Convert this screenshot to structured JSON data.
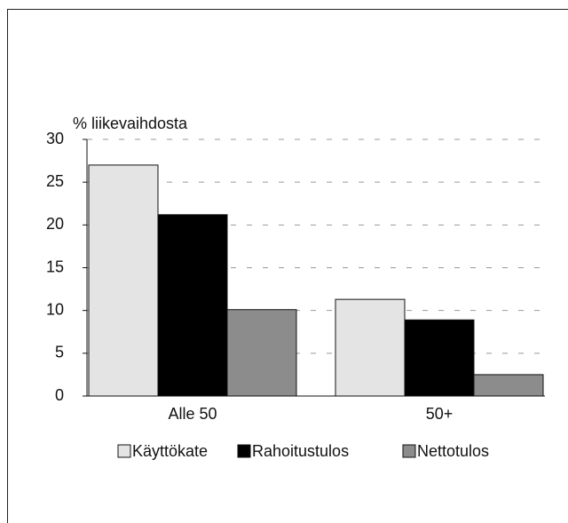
{
  "chart_data": {
    "type": "bar",
    "y_label": "% liikevaihdosta",
    "categories": [
      "Alle 50",
      "50+"
    ],
    "series": [
      {
        "name": "Käyttökate",
        "color": "#e4e4e4",
        "values": [
          27,
          11.3
        ]
      },
      {
        "name": "Rahoitustulos",
        "color": "#000000",
        "values": [
          21.2,
          8.9
        ]
      },
      {
        "name": "Nettotulos",
        "color": "#8c8c8c",
        "values": [
          10.1,
          2.5
        ]
      }
    ],
    "ylim": [
      0,
      30
    ],
    "yticks": [
      0,
      5,
      10,
      15,
      20,
      25,
      30
    ],
    "grid": true
  }
}
